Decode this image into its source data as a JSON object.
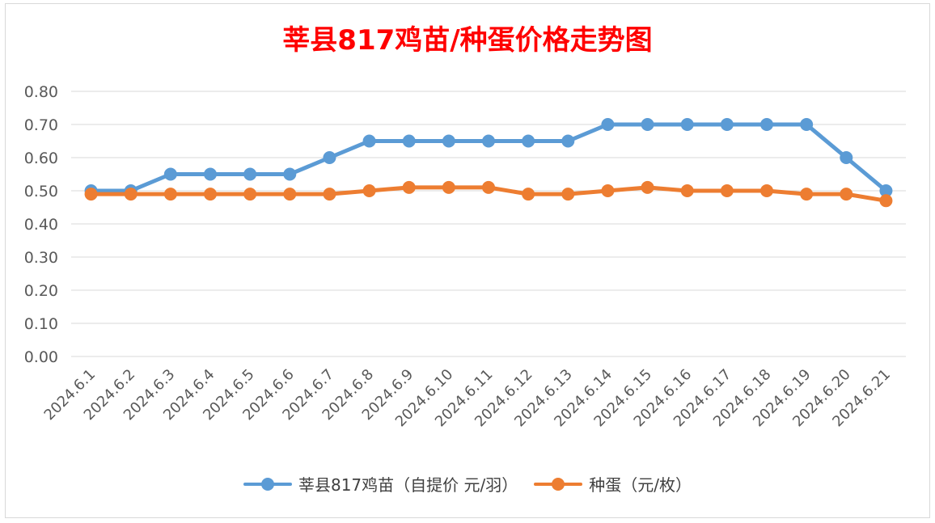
{
  "chart_data": {
    "type": "line",
    "title": "莘县817鸡苗/种蛋价格走势图",
    "xlabel": "",
    "ylabel": "",
    "ylim": [
      0,
      0.8
    ],
    "yticks": [
      "0.00",
      "0.10",
      "0.20",
      "0.30",
      "0.40",
      "0.50",
      "0.60",
      "0.70",
      "0.80"
    ],
    "grid": true,
    "legend_position": "bottom",
    "categories": [
      "2024.6.1",
      "2024.6.2",
      "2024.6.3",
      "2024.6.4",
      "2024.6.5",
      "2024.6.6",
      "2024.6.7",
      "2024.6.8",
      "2024.6.9",
      "2024.6.10",
      "2024.6.11",
      "2024.6.12",
      "2024.6.13",
      "2024.6.14",
      "2024.6.15",
      "2024.6.16",
      "2024.6.17",
      "2024.6.18",
      "2024.6.19",
      "2024.6.20",
      "2024.6.21"
    ],
    "series": [
      {
        "name": "莘县817鸡苗（自提价 元/羽）",
        "color": "#5b9bd5",
        "values": [
          0.5,
          0.5,
          0.55,
          0.55,
          0.55,
          0.55,
          0.6,
          0.65,
          0.65,
          0.65,
          0.65,
          0.65,
          0.65,
          0.7,
          0.7,
          0.7,
          0.7,
          0.7,
          0.7,
          0.6,
          0.5
        ]
      },
      {
        "name": "种蛋（元/枚）",
        "color": "#ed7d31",
        "values": [
          0.49,
          0.49,
          0.49,
          0.49,
          0.49,
          0.49,
          0.49,
          0.5,
          0.51,
          0.51,
          0.51,
          0.49,
          0.49,
          0.5,
          0.51,
          0.5,
          0.5,
          0.5,
          0.49,
          0.49,
          0.47
        ]
      }
    ]
  }
}
